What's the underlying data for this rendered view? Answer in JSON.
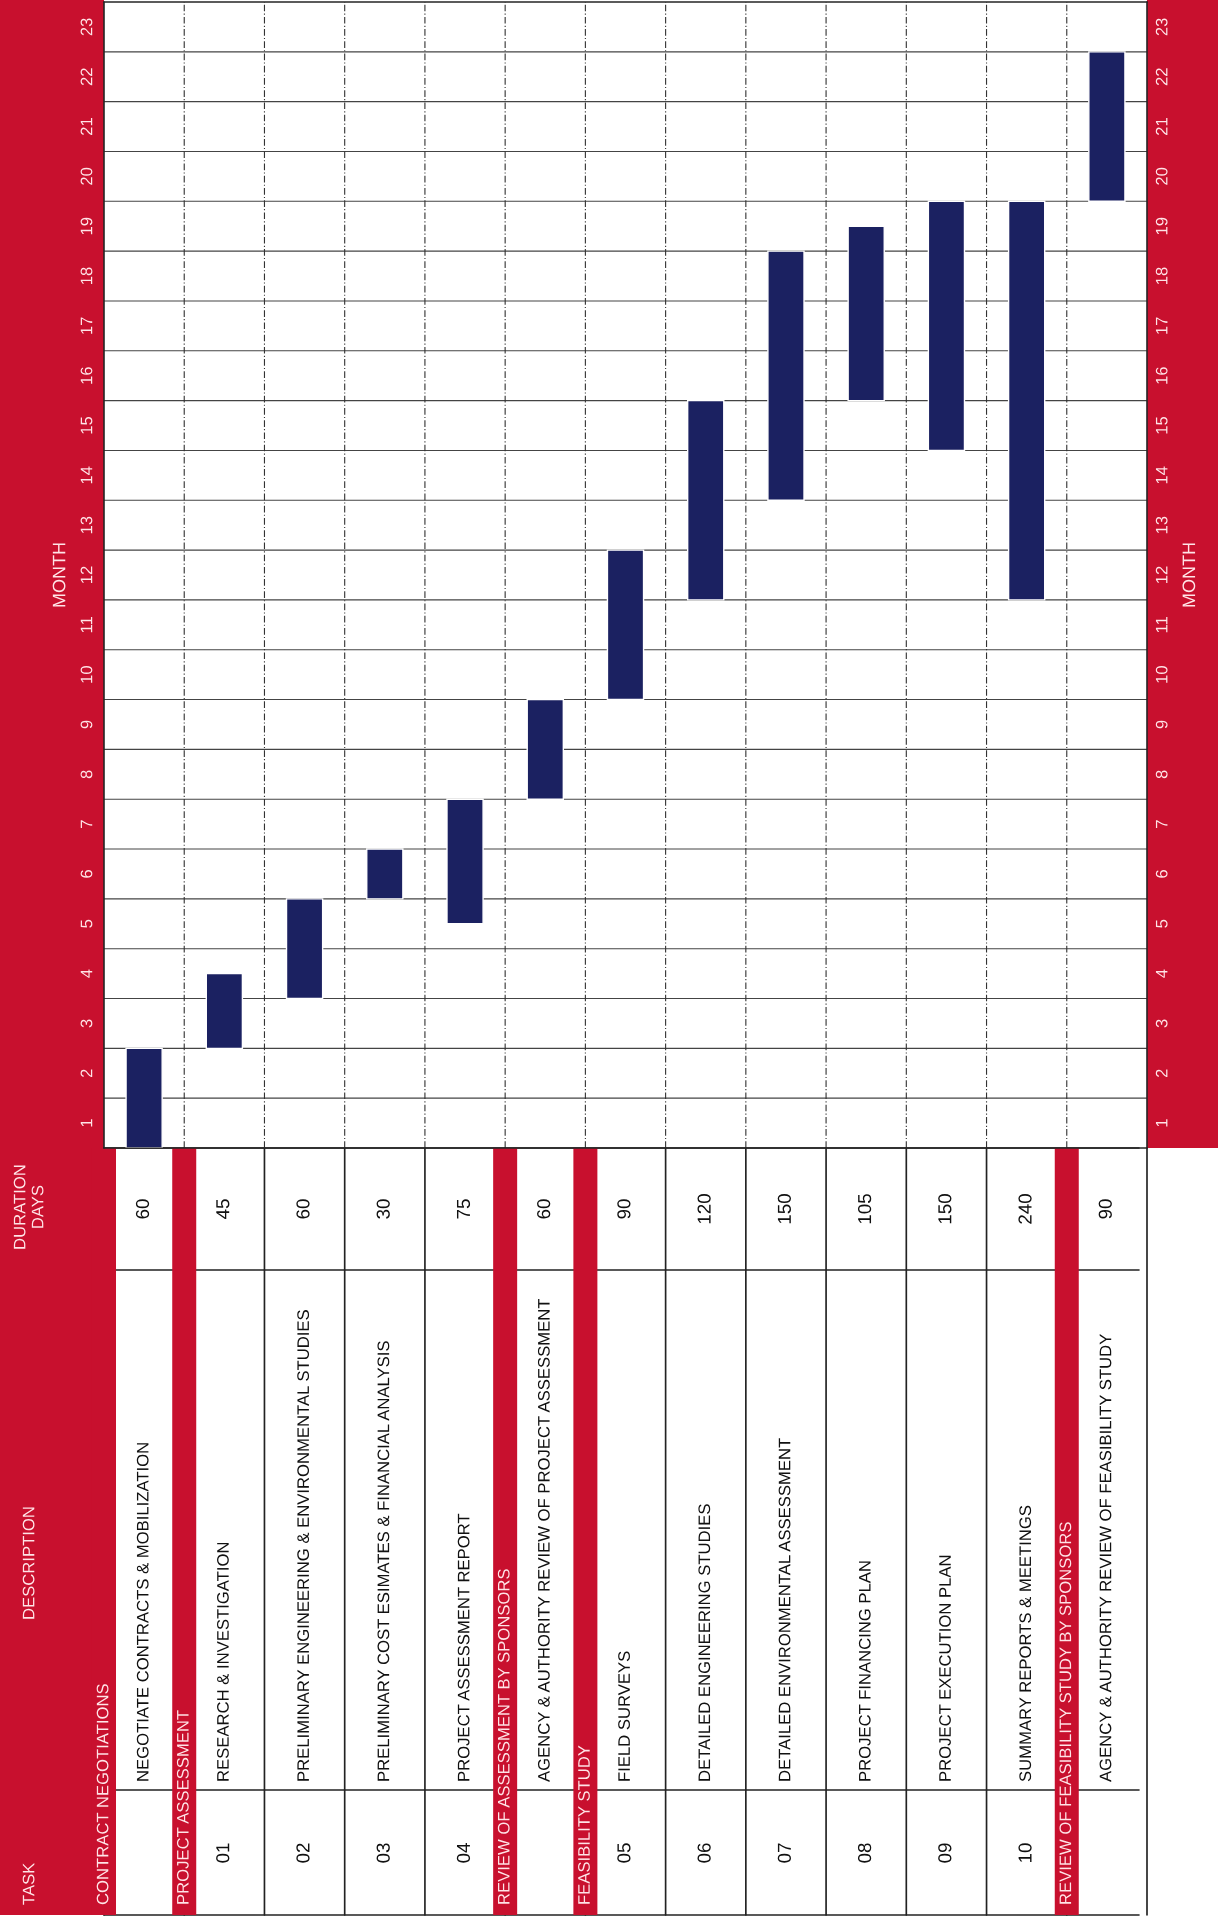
{
  "chart_data": {
    "type": "bar",
    "categories": [
      "NEGOTIATE CONTRACTS & MOBILIZATION",
      "RESEARCH & INVESTIGATION",
      "PRELIMINARY ENGINEERING & ENVIRONMENTAL STUDIES",
      "PRELIMINARY COST ESIMATES & FINANCIAL ANALYSIS",
      "PROJECT ASSESSMENT REPORT",
      "AGENCY & AUTHORITY REVIEW OF PROJECT ASSESSMENT",
      "FIELD SURVEYS",
      "DETAILED ENGINEERING STUDIES",
      "DETAILED ENVIRONMENTAL ASSESSMENT",
      "PROJECT FINANCING PLAN",
      "PROJECT EXECUTION PLAN",
      "SUMMARY REPORTS & MEETINGS",
      "AGENCY & AUTHORITY REVIEW OF FEASIBILITY STUDY"
    ],
    "base": [
      0,
      2,
      3,
      5,
      4.5,
      7,
      9,
      11,
      13,
      15,
      14,
      11,
      19
    ],
    "values": [
      2,
      1.5,
      2,
      1,
      2.5,
      2,
      3,
      4,
      5,
      3.5,
      5,
      8,
      3
    ],
    "color": "#1b2161",
    "ylabel": "MONTH",
    "y2label": "MONTH",
    "ylim": [
      0,
      23
    ],
    "yticks": [
      {
        "value": 0.5,
        "label": "1"
      },
      {
        "value": 1.5,
        "label": "2"
      },
      {
        "value": 2.5,
        "label": "3"
      },
      {
        "value": 3.5,
        "label": "4"
      },
      {
        "value": 4.5,
        "label": "5"
      },
      {
        "value": 5.5,
        "label": "6"
      },
      {
        "value": 6.5,
        "label": "7"
      },
      {
        "value": 7.5,
        "label": "8"
      },
      {
        "value": 8.5,
        "label": "9"
      },
      {
        "value": 9.5,
        "label": "10"
      },
      {
        "value": 10.5,
        "label": "11"
      },
      {
        "value": 11.5,
        "label": "12"
      },
      {
        "value": 12.5,
        "label": "13"
      },
      {
        "value": 13.5,
        "label": "14"
      },
      {
        "value": 14.5,
        "label": "15"
      },
      {
        "value": 15.5,
        "label": "16"
      },
      {
        "value": 16.5,
        "label": "17"
      },
      {
        "value": 17.5,
        "label": "18"
      },
      {
        "value": 18.5,
        "label": "19"
      },
      {
        "value": 19.5,
        "label": "20"
      },
      {
        "value": 20.5,
        "label": "21"
      },
      {
        "value": 21.5,
        "label": "22"
      },
      {
        "value": 22.5,
        "label": "23"
      }
    ],
    "y2lim": [
      0,
      23
    ],
    "y2ticks": [
      {
        "value": 0.5,
        "label": "1"
      },
      {
        "value": 1.5,
        "label": "2"
      },
      {
        "value": 2.5,
        "label": "3"
      },
      {
        "value": 3.5,
        "label": "4"
      },
      {
        "value": 4.5,
        "label": "5"
      },
      {
        "value": 5.5,
        "label": "6"
      },
      {
        "value": 6.5,
        "label": "7"
      },
      {
        "value": 7.5,
        "label": "8"
      },
      {
        "value": 8.5,
        "label": "9"
      },
      {
        "value": 9.5,
        "label": "10"
      },
      {
        "value": 10.5,
        "label": "11"
      },
      {
        "value": 11.5,
        "label": "12"
      },
      {
        "value": 12.5,
        "label": "13"
      },
      {
        "value": 13.5,
        "label": "14"
      },
      {
        "value": 14.5,
        "label": "15"
      },
      {
        "value": 15.5,
        "label": "16"
      },
      {
        "value": 16.5,
        "label": "17"
      },
      {
        "value": 17.5,
        "label": "18"
      },
      {
        "value": 18.5,
        "label": "19"
      },
      {
        "value": 19.5,
        "label": "20"
      },
      {
        "value": 20.5,
        "label": "21"
      },
      {
        "value": 21.5,
        "label": "22"
      },
      {
        "value": 22.5,
        "label": "23"
      }
    ],
    "grid": true,
    "annotations": [
      "TASK",
      "DESCRIPTION",
      "DURATION DAYS",
      "60",
      "45",
      "60",
      "30",
      "75",
      "60",
      "90",
      "120",
      "150",
      "105",
      "150",
      "240",
      "90",
      "01",
      "02",
      "03",
      "04",
      "05",
      "06",
      "07",
      "08",
      "09",
      "10",
      "CONTRACT NEGOTIATIONS",
      "PROJECT ASSESSMENT",
      "REVIEW OF ASSESSMENT BY SPONSORS",
      "FEASIBILITY STUDY",
      "REVIEW OF FEASIBILITY STUDY BY SPONSORS"
    ]
  }
}
